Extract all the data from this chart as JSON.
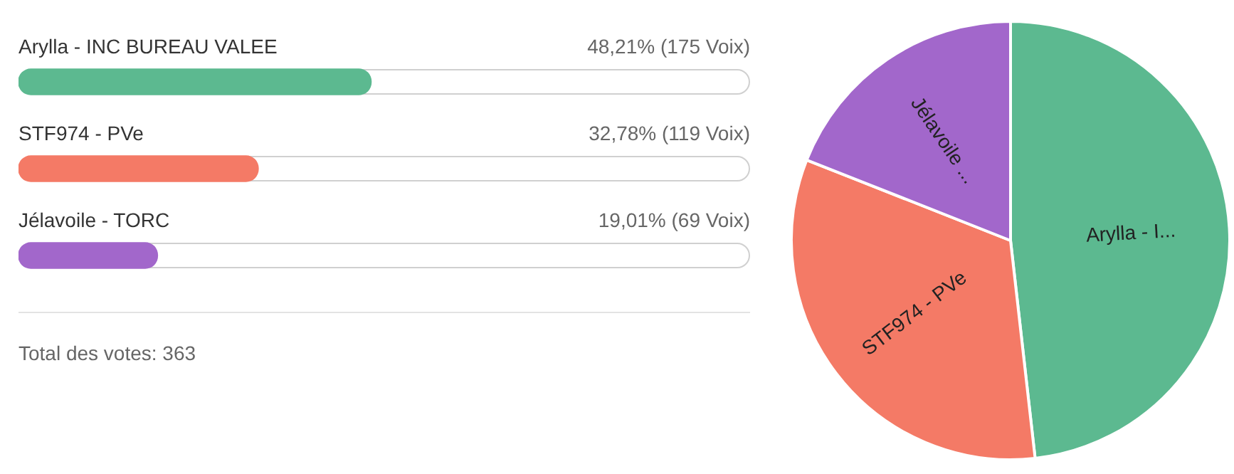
{
  "chart_data": [
    {
      "type": "bar",
      "orientation": "horizontal",
      "categories": [
        "Arylla - INC BUREAU VALEE",
        "STF974 - PVe",
        "Jélavoile - TORC"
      ],
      "values": [
        48.21,
        32.78,
        19.01
      ],
      "colors": [
        "#5cb990",
        "#f47a66",
        "#a267cb"
      ],
      "value_labels": [
        "48,21% (175 Voix)",
        "32,78% (119 Voix)",
        "19,01% (69 Voix)"
      ],
      "xlim": [
        0,
        100
      ],
      "tick_labels": false,
      "legend": false,
      "annotations": [
        "Total des votes: 363"
      ]
    },
    {
      "type": "pie",
      "categories": [
        "Arylla - I...",
        "STF974 - PVe",
        "Jélavoile ..."
      ],
      "values": [
        48.21,
        32.78,
        19.01
      ],
      "colors": [
        "#5cb990",
        "#f47a66",
        "#a267cb"
      ],
      "legend": false
    }
  ]
}
